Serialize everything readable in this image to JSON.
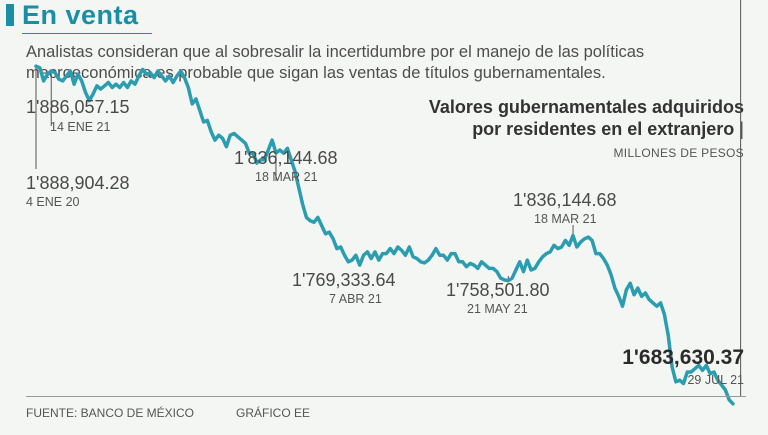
{
  "header": {
    "title": "En venta",
    "subtitle": "Analistas consideran que al sobresalir la incertidumbre por el manejo de las políticas macroeconómica es probable que sigan las ventas de títulos gubernamentales."
  },
  "footer": {
    "source": "FUENTE: BANCO DE MÉXICO",
    "credit": "GRÁFICO EE"
  },
  "colors": {
    "accent": "#1a8fa3",
    "line": "#2a9db0",
    "text": "#4a4a4a"
  },
  "chart_data": {
    "type": "line",
    "title_line1": "Valores gubernamentales adquiridos",
    "title_line2": "por residentes en el extranjero",
    "title_sep": "|",
    "unit": "MILLONES DE PESOS",
    "ylim": [
      1675000,
      1900000
    ],
    "grid": false,
    "x_start": "4 ENE 20",
    "x_end": "29 JUL 21",
    "series": [
      {
        "name": "Valores gubernamentales",
        "values": [
          1888904,
          1888000,
          1880000,
          1884000,
          1886057,
          1885000,
          1881000,
          1880000,
          1883000,
          1886000,
          1878000,
          1884000,
          1880000,
          1873000,
          1868000,
          1872000,
          1877000,
          1875000,
          1877000,
          1879000,
          1876000,
          1878000,
          1876000,
          1879000,
          1876000,
          1880000,
          1878000,
          1883000,
          1887000,
          1884000,
          1885000,
          1882000,
          1886000,
          1883000,
          1880000,
          1883000,
          1879000,
          1883000,
          1886000,
          1882000,
          1876000,
          1866000,
          1869000,
          1862000,
          1855000,
          1856000,
          1849000,
          1844000,
          1847000,
          1845000,
          1840000,
          1847000,
          1848000,
          1846000,
          1844000,
          1842000,
          1836000,
          1836000,
          1830000,
          1832000,
          1832000,
          1838000,
          1844000,
          1836145,
          1838000,
          1836000,
          1839000,
          1832000,
          1825000,
          1815000,
          1805000,
          1797000,
          1795000,
          1794000,
          1797000,
          1792000,
          1787000,
          1788000,
          1784000,
          1778000,
          1779000,
          1774000,
          1770000,
          1771000,
          1774000,
          1768000,
          1774000,
          1776000,
          1772000,
          1776000,
          1771000,
          1775000,
          1775000,
          1778000,
          1775000,
          1779000,
          1777000,
          1774000,
          1779000,
          1773000,
          1772000,
          1770000,
          1769334,
          1771000,
          1774000,
          1778000,
          1774000,
          1774000,
          1771000,
          1775000,
          1775000,
          1770000,
          1770000,
          1767000,
          1769000,
          1768000,
          1766000,
          1770000,
          1768000,
          1766000,
          1766000,
          1764000,
          1760000,
          1759000,
          1758502,
          1760000,
          1765000,
          1770000,
          1764000,
          1771000,
          1765000,
          1766000,
          1770000,
          1773000,
          1775000,
          1776000,
          1780000,
          1778000,
          1779000,
          1783000,
          1780000,
          1786000,
          1779000,
          1782000,
          1784000,
          1785000,
          1783000,
          1775000,
          1775000,
          1772000,
          1768000,
          1762000,
          1754000,
          1749000,
          1743000,
          1753000,
          1757000,
          1750000,
          1754000,
          1749000,
          1751000,
          1747000,
          1745000,
          1743000,
          1745000,
          1738000,
          1725000,
          1706000,
          1697000,
          1698000,
          1696000,
          1703000,
          1703000,
          1705000,
          1707000,
          1704000,
          1707000,
          1702000,
          1703000,
          1698000,
          1695000,
          1692000,
          1686000,
          1683630
        ]
      }
    ],
    "annotations": [
      {
        "value": "1'886,057.15",
        "date": "14 ENE 21"
      },
      {
        "value": "1'888,904.28",
        "date": "4 ENE 20"
      },
      {
        "value": "1'836,144.68",
        "date": "18 MAR 21"
      },
      {
        "value": "1'769,333.64",
        "date": "7 ABR 21"
      },
      {
        "value": "1'758,501.80",
        "date": "21 MAY 21"
      },
      {
        "value": "1'836,144.68",
        "date": "18 MAR 21"
      },
      {
        "value": "1'683,630.37",
        "date": "29 JUL 21"
      }
    ]
  }
}
